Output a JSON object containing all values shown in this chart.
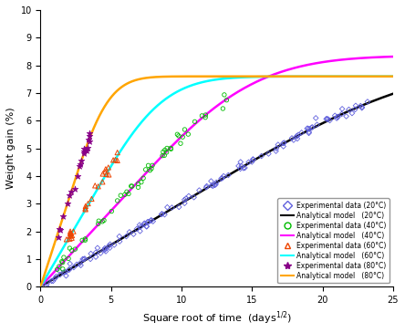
{
  "title": "",
  "xlabel": "Square root of time  (days$^{1/2}$)",
  "ylabel": "Weight gain (%)",
  "xlim": [
    0,
    25
  ],
  "ylim": [
    0,
    10
  ],
  "yticks": [
    0,
    1,
    2,
    3,
    4,
    5,
    6,
    7,
    8,
    9,
    10
  ],
  "xticks": [
    0,
    5,
    10,
    15,
    20,
    25
  ],
  "model_params": {
    "20C": {
      "k": 0.28,
      "Minf": 8.35,
      "color": "black",
      "lw": 1.8
    },
    "40C": {
      "k": 0.75,
      "Minf": 8.35,
      "color": "#ff00ff",
      "lw": 1.8
    },
    "60C": {
      "k": 1.35,
      "Minf": 7.6,
      "color": "cyan",
      "lw": 1.8
    },
    "80C": {
      "k": 2.8,
      "Minf": 7.6,
      "color": "orange",
      "lw": 1.8
    }
  },
  "exp_colors": {
    "20C": "#6060dd",
    "40C": "#00bb00",
    "60C": "#ee4400",
    "80C": "#880088"
  },
  "exp_markers": {
    "20C": "D",
    "40C": "o",
    "60C": "^",
    "80C": "*"
  },
  "exp_ranges": {
    "20C": [
      0.3,
      23.5
    ],
    "40C": [
      1.0,
      13.5
    ],
    "60C": [
      1.8,
      5.5
    ],
    "80C": [
      1.2,
      3.5
    ]
  },
  "exp_npoints": {
    "20C": 130,
    "40C": 55,
    "60C": 28,
    "80C": 22
  },
  "legend_labels": [
    "Experimental data (20°C)",
    "Analytical model   (20°C)",
    "Experimental data (40°C)",
    "Analytical model   (40°C)",
    "Experimental data (60°C)",
    "Analytical model   (60°C)",
    "Experimental data (80°C)",
    "Analytical model   (80°C)"
  ],
  "background_color": "#ffffff"
}
